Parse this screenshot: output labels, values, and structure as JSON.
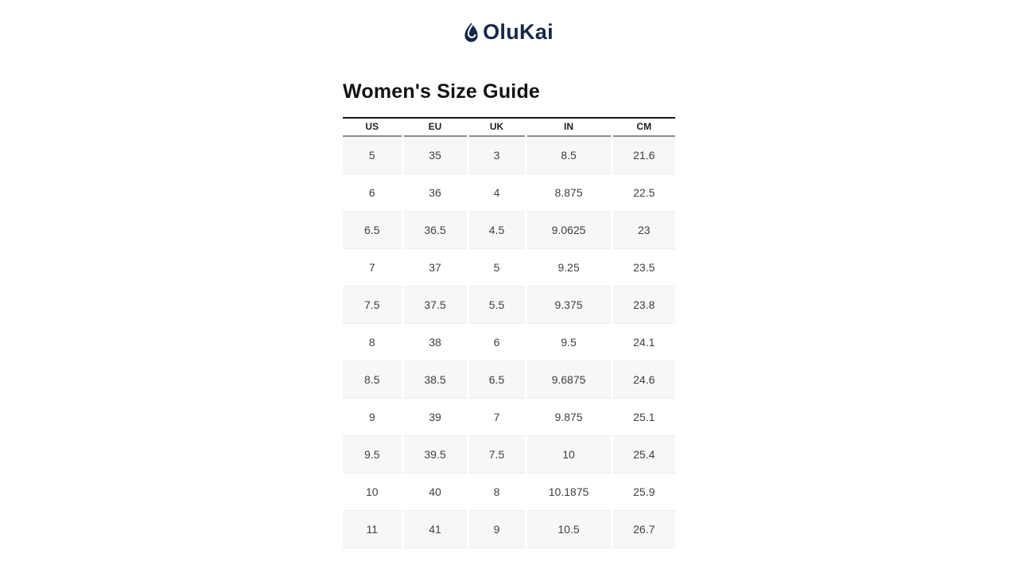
{
  "brand": {
    "name": "OluKai",
    "logo_color": "#16284a",
    "logo_icon": "droplet-hook-icon"
  },
  "page": {
    "title": "Women's Size Guide"
  },
  "colors": {
    "stripe_row_bg": "#f7f7f7",
    "table_top_rule": "#161616",
    "header_rule": "#8d8d8d",
    "cell_text": "#404040"
  },
  "table": {
    "headers": [
      "US",
      "EU",
      "UK",
      "IN",
      "CM"
    ],
    "rows": [
      [
        "5",
        "35",
        "3",
        "8.5",
        "21.6"
      ],
      [
        "6",
        "36",
        "4",
        "8.875",
        "22.5"
      ],
      [
        "6.5",
        "36.5",
        "4.5",
        "9.0625",
        "23"
      ],
      [
        "7",
        "37",
        "5",
        "9.25",
        "23.5"
      ],
      [
        "7.5",
        "37.5",
        "5.5",
        "9.375",
        "23.8"
      ],
      [
        "8",
        "38",
        "6",
        "9.5",
        "24.1"
      ],
      [
        "8.5",
        "38.5",
        "6.5",
        "9.6875",
        "24.6"
      ],
      [
        "9",
        "39",
        "7",
        "9.875",
        "25.1"
      ],
      [
        "9.5",
        "39.5",
        "7.5",
        "10",
        "25.4"
      ],
      [
        "10",
        "40",
        "8",
        "10.1875",
        "25.9"
      ],
      [
        "11",
        "41",
        "9",
        "10.5",
        "26.7"
      ]
    ]
  }
}
